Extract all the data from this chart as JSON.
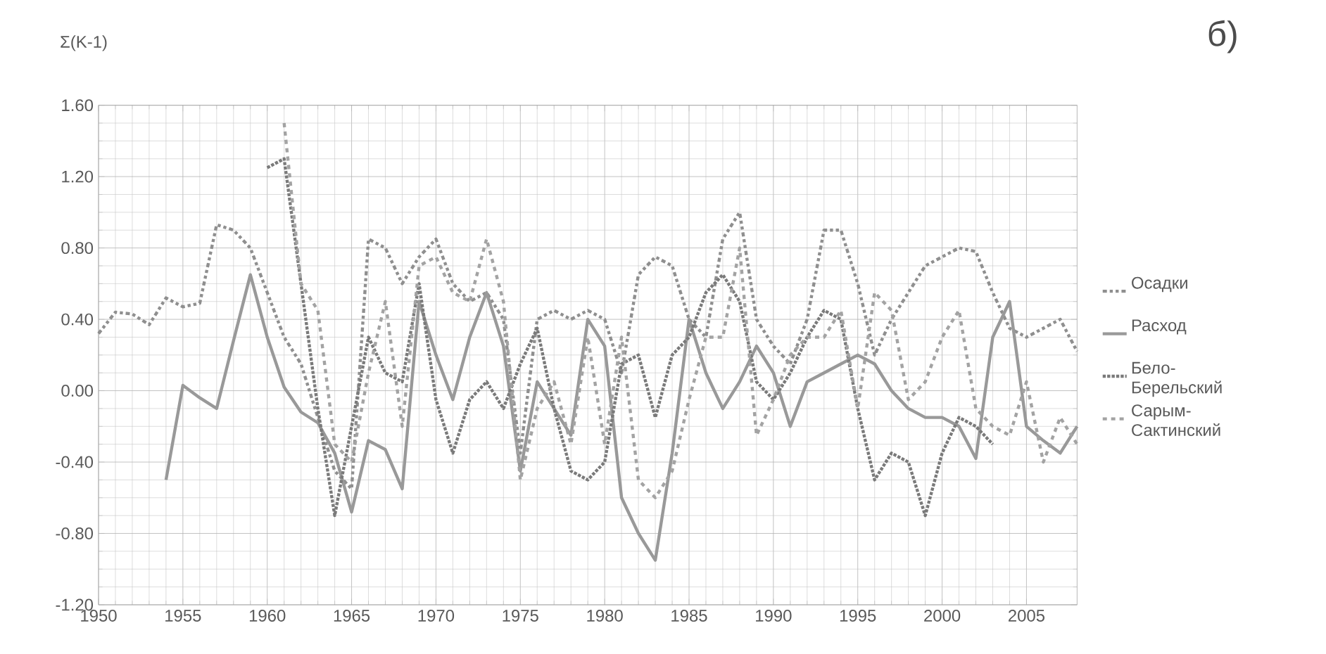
{
  "chart_data": {
    "type": "line",
    "ylabel": "Σ(K-1)",
    "annotations": [
      "б)"
    ],
    "x": [
      1950,
      1951,
      1952,
      1953,
      1954,
      1955,
      1956,
      1957,
      1958,
      1959,
      1960,
      1961,
      1962,
      1963,
      1964,
      1965,
      1966,
      1967,
      1968,
      1969,
      1970,
      1971,
      1972,
      1973,
      1974,
      1975,
      1976,
      1977,
      1978,
      1979,
      1980,
      1981,
      1982,
      1983,
      1984,
      1985,
      1986,
      1987,
      1988,
      1989,
      1990,
      1991,
      1992,
      1993,
      1994,
      1995,
      1996,
      1997,
      1998,
      1999,
      2000,
      2001,
      2002,
      2003,
      2004,
      2005,
      2006,
      2007,
      2008
    ],
    "series": [
      {
        "name": "Осадки",
        "color": "#8f8f8f",
        "line_style": "dashdot",
        "values": [
          0.32,
          0.44,
          0.43,
          0.37,
          0.52,
          0.47,
          0.49,
          0.93,
          0.9,
          0.8,
          0.55,
          0.3,
          0.15,
          -0.15,
          -0.45,
          -0.55,
          0.85,
          0.8,
          0.6,
          0.75,
          0.85,
          0.6,
          0.5,
          0.55,
          0.4,
          -0.35,
          0.4,
          0.45,
          0.4,
          0.45,
          0.4,
          0.1,
          0.65,
          0.75,
          0.7,
          0.4,
          0.3,
          0.85,
          1.0,
          0.4,
          0.25,
          0.15,
          0.4,
          0.9,
          0.9,
          0.6,
          0.2,
          0.4,
          0.55,
          0.7,
          0.75,
          0.8,
          0.78,
          0.55,
          0.35,
          0.3,
          0.35,
          0.4,
          0.22
        ]
      },
      {
        "name": "Расход",
        "color": "#999999",
        "line_style": "solid",
        "values": [
          null,
          null,
          null,
          null,
          -0.5,
          0.03,
          -0.04,
          -0.1,
          0.28,
          0.65,
          0.3,
          0.02,
          -0.12,
          -0.18,
          -0.35,
          -0.68,
          -0.28,
          -0.33,
          -0.55,
          0.5,
          0.2,
          -0.05,
          0.3,
          0.55,
          0.25,
          -0.45,
          0.05,
          -0.1,
          -0.25,
          0.4,
          0.25,
          -0.6,
          -0.8,
          -0.95,
          -0.35,
          0.4,
          0.1,
          -0.1,
          0.05,
          0.25,
          0.1,
          -0.2,
          0.05,
          0.1,
          0.15,
          0.2,
          0.15,
          0.0,
          -0.1,
          -0.15,
          -0.15,
          -0.2,
          -0.38,
          0.3,
          0.5,
          -0.2,
          -0.28,
          -0.35,
          -0.2
        ]
      },
      {
        "name": "Бело-Берельский",
        "color": "#7a7a7a",
        "line_style": "dotted",
        "values": [
          null,
          null,
          null,
          null,
          null,
          null,
          null,
          null,
          null,
          null,
          1.25,
          1.3,
          0.6,
          -0.1,
          -0.7,
          -0.2,
          0.3,
          0.1,
          0.05,
          0.6,
          -0.05,
          -0.35,
          -0.05,
          0.05,
          -0.1,
          0.15,
          0.35,
          -0.1,
          -0.45,
          -0.5,
          -0.4,
          0.15,
          0.2,
          -0.15,
          0.2,
          0.3,
          0.55,
          0.65,
          0.5,
          0.05,
          -0.05,
          0.1,
          0.3,
          0.45,
          0.4,
          -0.1,
          -0.5,
          -0.35,
          -0.4,
          -0.7,
          -0.35,
          -0.15,
          -0.2,
          -0.3,
          null,
          null,
          null,
          null,
          null
        ]
      },
      {
        "name": "Сарым-Сактинский",
        "color": "#a3a3a3",
        "line_style": "dashed",
        "values": [
          null,
          null,
          null,
          null,
          null,
          null,
          null,
          null,
          null,
          null,
          null,
          1.5,
          0.6,
          0.45,
          -0.3,
          -0.4,
          0.1,
          0.5,
          -0.2,
          0.7,
          0.75,
          0.55,
          0.5,
          0.85,
          0.5,
          -0.5,
          -0.1,
          0.05,
          -0.3,
          0.3,
          -0.3,
          0.3,
          -0.5,
          -0.6,
          -0.45,
          -0.05,
          0.3,
          0.3,
          0.8,
          -0.25,
          -0.05,
          0.2,
          0.3,
          0.3,
          0.45,
          -0.1,
          0.55,
          0.45,
          -0.05,
          0.05,
          0.3,
          0.45,
          -0.1,
          -0.2,
          -0.25,
          0.05,
          -0.4,
          -0.15,
          -0.3
        ]
      }
    ],
    "xlim": [
      1950,
      2008
    ],
    "ylim": [
      -1.2,
      1.6
    ],
    "xticks": [
      1950,
      1955,
      1960,
      1965,
      1970,
      1975,
      1980,
      1985,
      1990,
      1995,
      2000,
      2005
    ],
    "yticks": [
      {
        "value": -1.2,
        "label": "-1.20"
      },
      {
        "value": -0.8,
        "label": "-0.80"
      },
      {
        "value": -0.4,
        "label": "-0.40"
      },
      {
        "value": 0,
        "label": "0.00"
      },
      {
        "value": 0.4,
        "label": "0.40"
      },
      {
        "value": 0.8,
        "label": "0.80"
      },
      {
        "value": 1.2,
        "label": "1.20"
      },
      {
        "value": 1.6,
        "label": "1.60"
      }
    ],
    "grid": true,
    "legend": "right",
    "marker": "none"
  }
}
